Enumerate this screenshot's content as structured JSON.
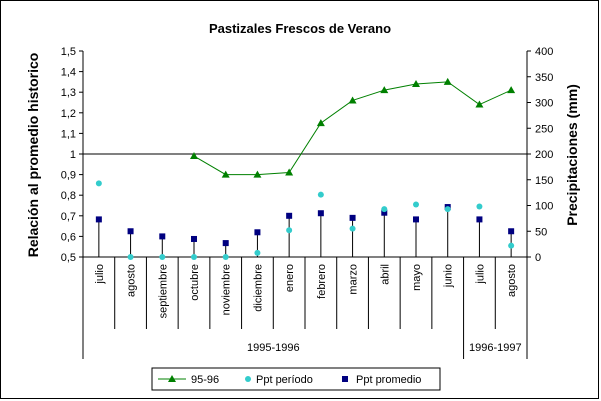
{
  "chart_data": {
    "type": "line",
    "title": "Pastizales Frescos de Verano",
    "ylabel": "Relación al promedio historico",
    "y2label": "Precipitaciones (mm)",
    "ylim": [
      0.5,
      1.5
    ],
    "yticks": [
      "0,5",
      "0,6",
      "0,7",
      "0,8",
      "0,9",
      "1",
      "1,1",
      "1,2",
      "1,3",
      "1,4",
      "1,5"
    ],
    "y2lim": [
      0,
      400
    ],
    "y2ticks": [
      "0",
      "50",
      "100",
      "150",
      "200",
      "250",
      "300",
      "350",
      "400"
    ],
    "reference_line": 1.0,
    "categories": [
      "julio",
      "agosto",
      "septiembre",
      "octubre",
      "noviembre",
      "diciembre",
      "enero",
      "febrero",
      "marzo",
      "abril",
      "mayo",
      "junio",
      "julio",
      "agosto"
    ],
    "periods": [
      {
        "label": "1995-1996",
        "start": 0,
        "end": 11
      },
      {
        "label": "1996-1997",
        "start": 12,
        "end": 13
      }
    ],
    "series": [
      {
        "name": "95-96",
        "kind": "line",
        "axis": "left",
        "color": "#008000",
        "values": [
          null,
          null,
          null,
          0.99,
          0.9,
          0.9,
          0.91,
          1.15,
          1.26,
          1.31,
          1.34,
          1.35,
          1.24,
          1.31
        ]
      },
      {
        "name": "Ppt período",
        "kind": "dot",
        "axis": "right",
        "color": "#33cccc",
        "values": [
          143,
          0,
          0,
          0,
          0,
          8,
          52,
          121,
          55,
          93,
          102,
          93,
          98,
          22
        ]
      },
      {
        "name": "Ppt promedio",
        "kind": "stem",
        "axis": "right",
        "color": "#000080",
        "values": [
          73,
          50,
          40,
          35,
          27,
          48,
          80,
          85,
          76,
          86,
          73,
          97,
          73,
          50
        ]
      }
    ],
    "legend_position": "bottom",
    "grid": false
  }
}
